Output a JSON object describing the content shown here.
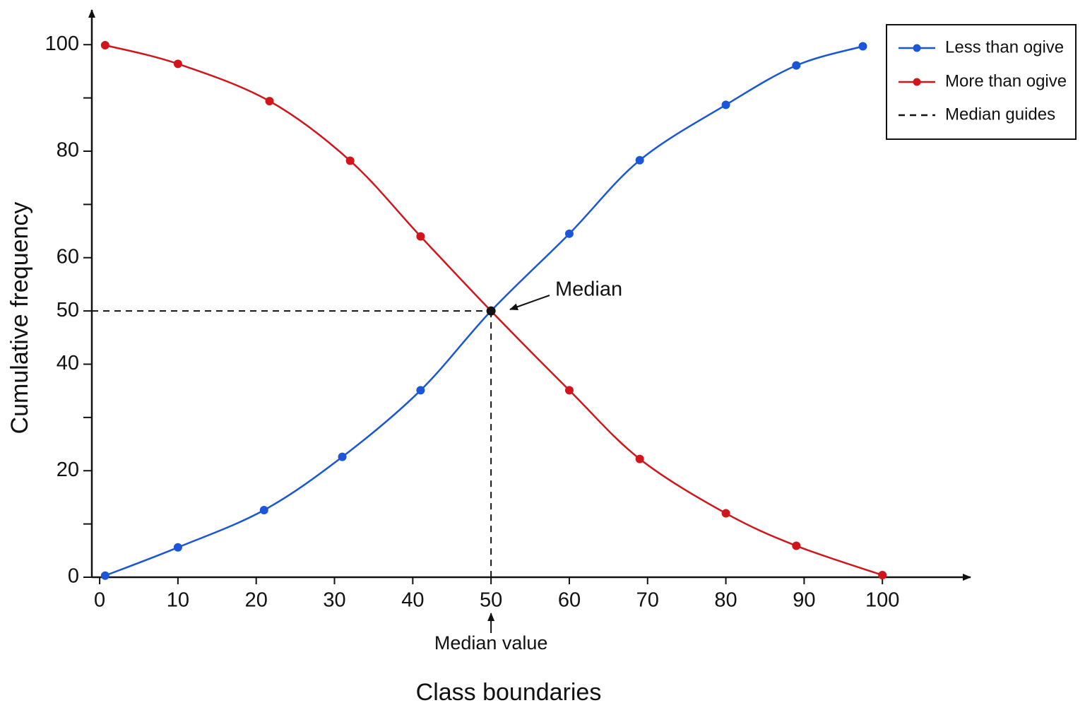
{
  "chart_data": {
    "type": "line",
    "x_label": "Class boundaries",
    "y_label": "Cumulative frequency",
    "xlim": [
      -1,
      110
    ],
    "ylim": [
      0,
      106
    ],
    "xticks": [
      0,
      10,
      20,
      30,
      40,
      50,
      60,
      70,
      80,
      90,
      100
    ],
    "yticks": [
      0,
      20,
      40,
      50,
      60,
      80,
      100
    ],
    "yminor_ticks": [
      10,
      30,
      70,
      90
    ],
    "legend": "top-right",
    "smooth": true,
    "series": [
      {
        "name": "Less than ogive",
        "color": "#1a56d6",
        "x": [
          0.7,
          10,
          21,
          31,
          41,
          50,
          60,
          69,
          80,
          89,
          97.5
        ],
        "values": [
          0.3,
          5.6,
          12.6,
          22.6,
          35.1,
          50,
          64.5,
          78.3,
          88.7,
          96.1,
          99.7
        ]
      },
      {
        "name": "More than ogive",
        "color": "#d0161c",
        "x": [
          0.7,
          10,
          21.7,
          32,
          41,
          50,
          60,
          69,
          80,
          89,
          100
        ],
        "values": [
          99.9,
          96.4,
          89.4,
          78.2,
          64,
          50,
          35.1,
          22.2,
          12,
          5.9,
          0.4
        ]
      }
    ],
    "median": {
      "x": 50,
      "y": 50,
      "label": "Median",
      "axis_label": "Median value",
      "guides": "Median guides",
      "color": "#111111"
    }
  }
}
